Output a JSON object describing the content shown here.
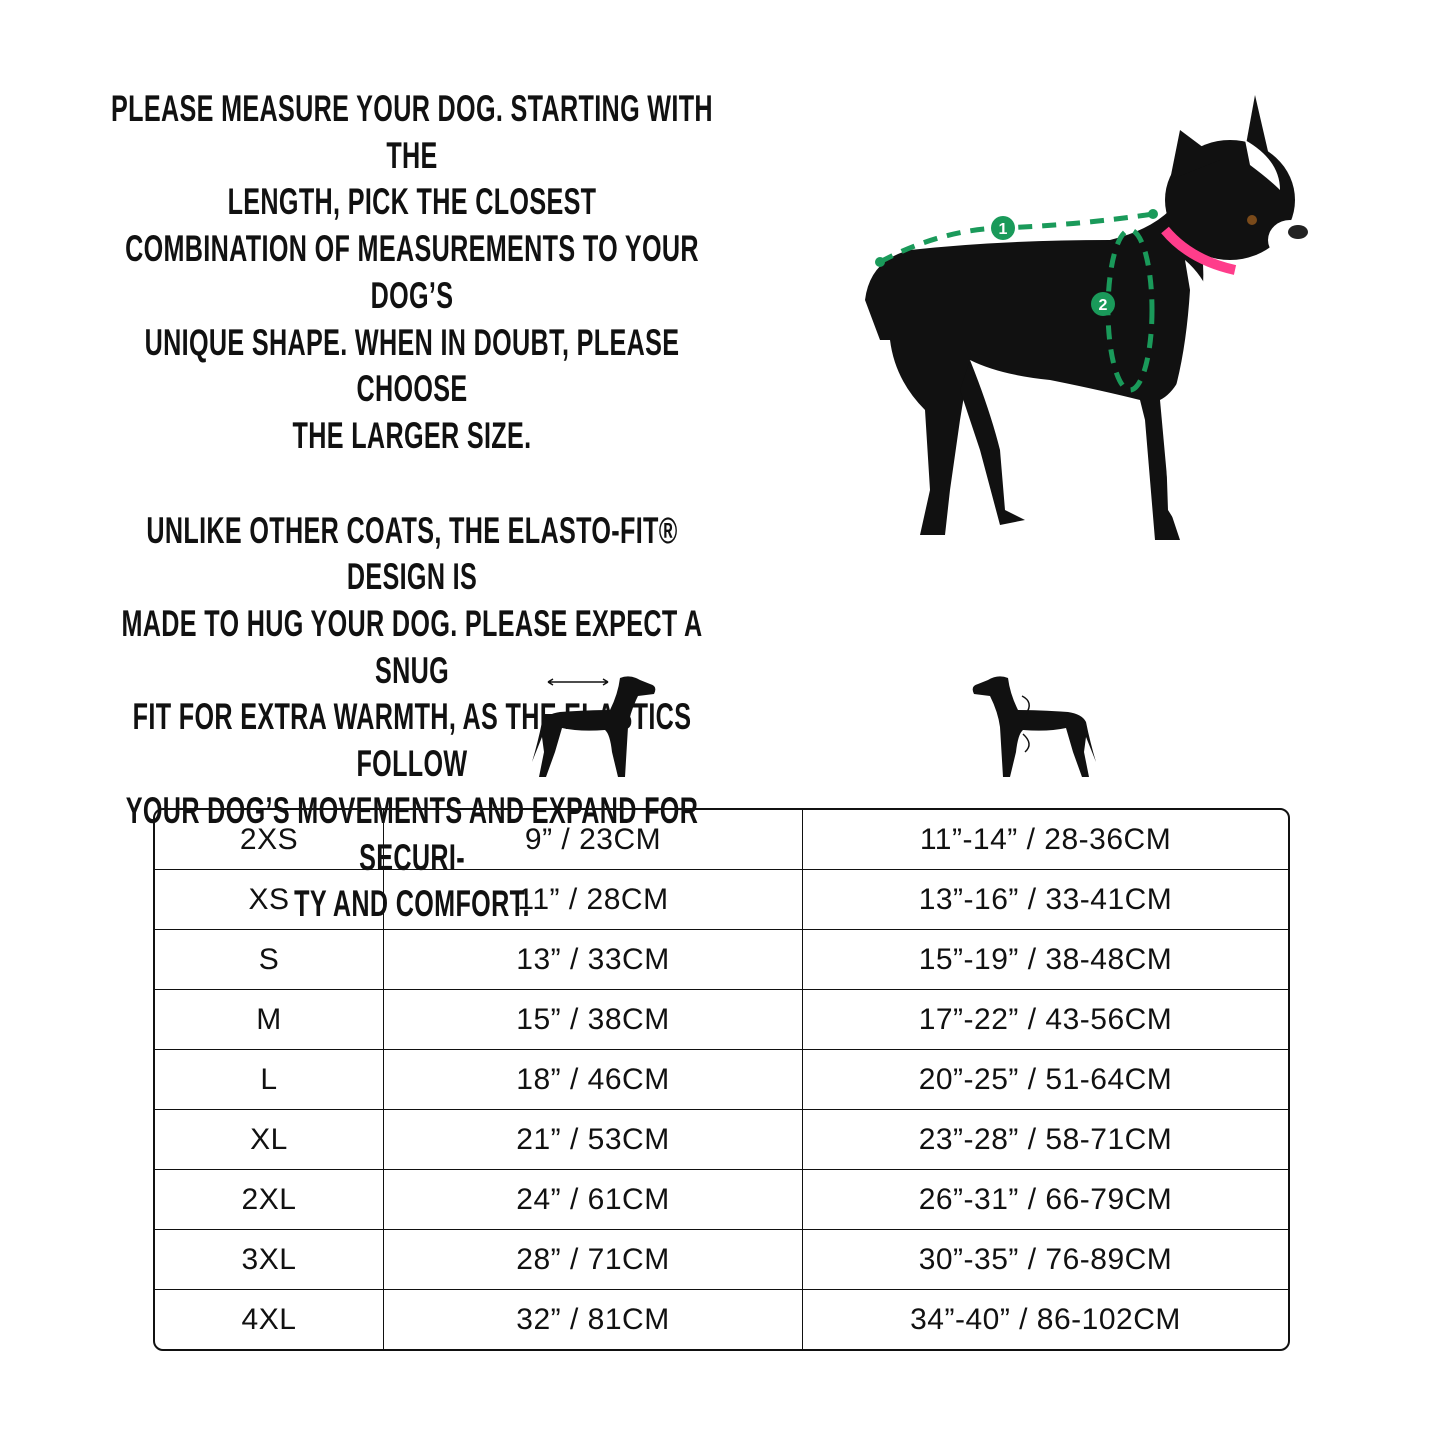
{
  "instructions": {
    "paragraph1": [
      "PLEASE MEASURE YOUR DOG. STARTING WITH THE",
      "LENGTH, PICK THE CLOSEST",
      "COMBINATION OF MEASUREMENTS TO YOUR DOG’S",
      "UNIQUE SHAPE. WHEN IN DOUBT, PLEASE CHOOSE",
      "THE LARGER SIZE."
    ],
    "paragraph2": [
      "UNLIKE OTHER COATS, THE ELASTO-FIT® DESIGN IS",
      "MADE TO HUG YOUR DOG. PLEASE EXPECT A SNUG",
      "FIT FOR EXTRA WARMTH, AS THE ELASTICS FOLLOW",
      "YOUR DOG’S MOVEMENTS AND EXPAND FOR SECURI-",
      "TY AND COMFORT."
    ]
  },
  "photo": {
    "marker1": "1",
    "marker2": "2",
    "accent": "#1a9a5a",
    "collar": "#ff3d8b"
  },
  "column_icons": [
    "dog-length-icon",
    "dog-chest-girth-icon"
  ],
  "size_table": {
    "rows": [
      [
        "2XS",
        "9” / 23CM",
        "11”-14” / 28-36CM"
      ],
      [
        "XS",
        "11” / 28CM",
        "13”-16” / 33-41CM"
      ],
      [
        "S",
        "13” / 33CM",
        "15”-19” / 38-48CM"
      ],
      [
        "M",
        "15” / 38CM",
        "17”-22” / 43-56CM"
      ],
      [
        "L",
        "18” / 46CM",
        "20”-25” / 51-64CM"
      ],
      [
        "XL",
        "21” / 53CM",
        "23”-28” / 58-71CM"
      ],
      [
        "2XL",
        "24” / 61CM",
        "26”-31” / 66-79CM"
      ],
      [
        "3XL",
        "28” / 71CM",
        "30”-35” / 76-89CM"
      ],
      [
        "4XL",
        "32” / 81CM",
        "34”-40” / 86-102CM"
      ]
    ]
  }
}
